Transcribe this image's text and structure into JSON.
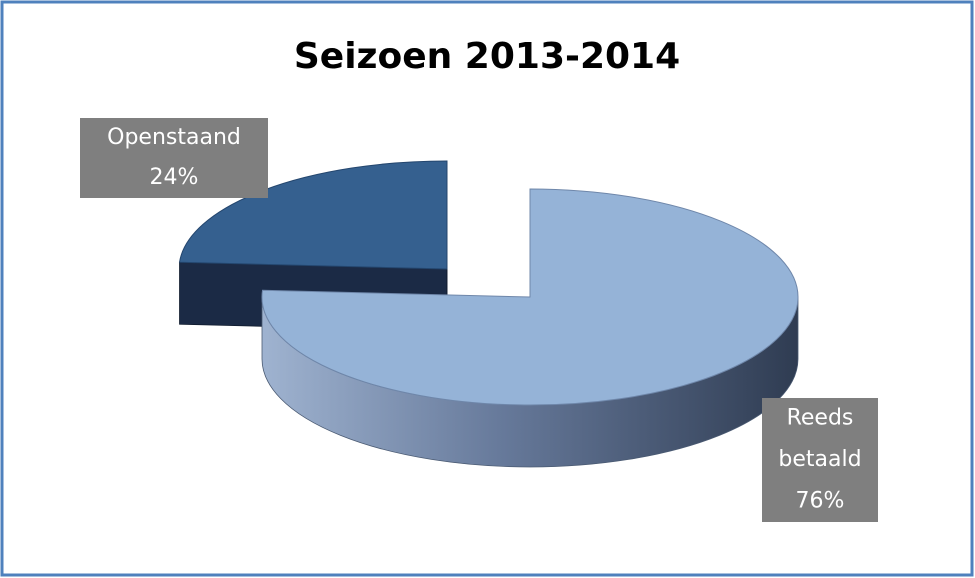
{
  "chart_data": {
    "type": "pie",
    "title": "Seizoen 2013-2014",
    "categories": [
      "Openstaand",
      "Reeds betaald"
    ],
    "values": [
      24,
      76
    ],
    "value_labels": [
      "24%",
      "76%"
    ],
    "colors": [
      "#35608f",
      "#95b3d7"
    ]
  }
}
